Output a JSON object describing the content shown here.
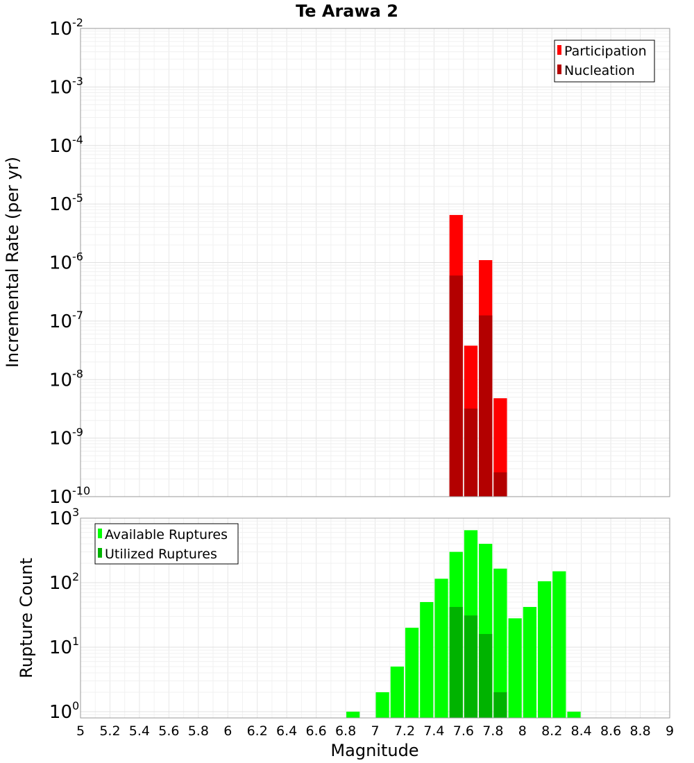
{
  "chart_data": [
    {
      "type": "bar",
      "title": "Te Arawa 2",
      "xlabel": "",
      "ylabel": "Incremental Rate (per yr)",
      "y_scale": "log",
      "xlim": [
        5,
        9
      ],
      "ylim": [
        1e-10,
        0.01
      ],
      "bin_width": 0.1,
      "grid": true,
      "legend_position": "top-right",
      "y_tick_exponents": [
        "-10",
        "-9",
        "-8",
        "-7",
        "-6",
        "-5",
        "-4",
        "-3",
        "-2"
      ],
      "series": [
        {
          "name": "Participation",
          "color": "#ff0000",
          "x": [
            7.55,
            7.65,
            7.75,
            7.85
          ],
          "values": [
            6.5e-06,
            3.8e-08,
            1.1e-06,
            4.8e-09
          ]
        },
        {
          "name": "Nucleation",
          "color": "#b30000",
          "x": [
            7.55,
            7.65,
            7.75,
            7.85
          ],
          "values": [
            6e-07,
            3.2e-09,
            1.25e-07,
            2.6e-10
          ]
        }
      ]
    },
    {
      "type": "bar",
      "title": "",
      "xlabel": "Magnitude",
      "ylabel": "Rupture Count",
      "y_scale": "log",
      "xlim": [
        5,
        9
      ],
      "ylim": [
        0.8,
        1000
      ],
      "bin_width": 0.1,
      "grid": true,
      "legend_position": "top-left",
      "x_ticks": [
        "5",
        "5.2",
        "5.4",
        "5.6",
        "5.8",
        "6",
        "6.2",
        "6.4",
        "6.6",
        "6.8",
        "7",
        "7.2",
        "7.4",
        "7.6",
        "7.8",
        "8",
        "8.2",
        "8.4",
        "8.6",
        "8.8",
        "9"
      ],
      "y_tick_exponents": [
        "0",
        "1",
        "2",
        "3"
      ],
      "series": [
        {
          "name": "Available Ruptures",
          "color": "#00ff00",
          "x": [
            6.85,
            7.05,
            7.15,
            7.25,
            7.35,
            7.45,
            7.55,
            7.65,
            7.75,
            7.85,
            7.95,
            8.05,
            8.15,
            8.25,
            8.35
          ],
          "values": [
            1,
            2,
            5,
            20,
            50,
            115,
            300,
            650,
            400,
            165,
            28,
            42,
            105,
            150,
            1
          ]
        },
        {
          "name": "Utilized Ruptures",
          "color": "#00b300",
          "x": [
            7.55,
            7.65,
            7.75,
            7.85
          ],
          "values": [
            42,
            31,
            16,
            2
          ]
        }
      ]
    }
  ]
}
